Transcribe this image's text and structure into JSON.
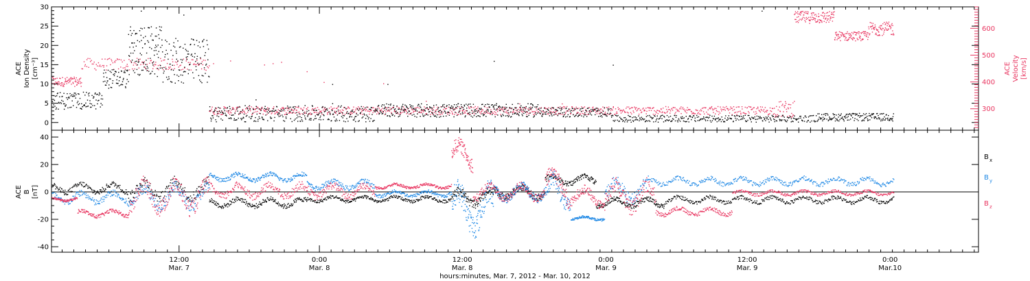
{
  "colors": {
    "black": "#000000",
    "pink": "#e8345f",
    "blue": "#1e88e5"
  },
  "chart_data": [
    {
      "type": "scatter",
      "panel": "top",
      "ylabel_lines": [
        "ACE",
        "Ion Density",
        "[cm⁻³]"
      ],
      "ylabel_right_lines": [
        "ACE",
        "Velocity",
        "[km/s]"
      ],
      "ylim": [
        -2,
        30
      ],
      "ylim_right": [
        220,
        680
      ],
      "yticks": [
        0,
        5,
        10,
        15,
        20,
        25,
        30
      ],
      "yticks_right": [
        300,
        400,
        500,
        600
      ],
      "series": [
        {
          "axis": "left",
          "color": "#000000",
          "segments": [
            {
              "t0": 0,
              "t1": 6,
              "n": 110,
              "min": 3.5,
              "max": 8
            },
            {
              "t0": 6,
              "t1": 9,
              "n": 60,
              "min": 9,
              "max": 14
            },
            {
              "t0": 9,
              "t1": 13,
              "n": 110,
              "min": 12,
              "max": 25
            },
            {
              "t0": 13,
              "t1": 18.5,
              "n": 120,
              "min": 10,
              "max": 22
            },
            {
              "t0": 18.5,
              "t1": 38,
              "n": 320,
              "min": 0.3,
              "max": 4.5
            },
            {
              "t0": 38,
              "t1": 58,
              "n": 360,
              "min": 1.5,
              "max": 5
            },
            {
              "t0": 58,
              "t1": 66,
              "n": 120,
              "min": 1.5,
              "max": 4
            },
            {
              "t0": 66,
              "t1": 90,
              "n": 320,
              "min": 0.2,
              "max": 2
            },
            {
              "t0": 90,
              "t1": 99,
              "n": 160,
              "min": 0.5,
              "max": 2.5
            }
          ],
          "outliers": [
            [
              10.5,
              29
            ],
            [
              15.5,
              28
            ],
            [
              24,
              6
            ],
            [
              33,
              5
            ],
            [
              52,
              16
            ],
            [
              66,
              15
            ],
            [
              83.5,
              29
            ],
            [
              33,
              10
            ],
            [
              39.5,
              10
            ]
          ]
        },
        {
          "axis": "right",
          "color": "#e8345f",
          "segments": [
            {
              "t0": 0,
              "t1": 3.5,
              "n": 80,
              "min": 385,
              "max": 420
            },
            {
              "t0": 3.5,
              "t1": 18.5,
              "n": 150,
              "min": 445,
              "max": 490
            },
            {
              "t0": 18.5,
              "t1": 85,
              "n": 900,
              "min": 280,
              "max": 310
            },
            {
              "t0": 85,
              "t1": 87.3,
              "n": 40,
              "min": 270,
              "max": 330
            },
            {
              "t0": 87.3,
              "t1": 92,
              "n": 120,
              "min": 620,
              "max": 665
            },
            {
              "t0": 92,
              "t1": 96,
              "n": 100,
              "min": 555,
              "max": 590
            },
            {
              "t0": 96,
              "t1": 99,
              "n": 80,
              "min": 575,
              "max": 625
            }
          ],
          "outliers": [
            [
              19,
              470
            ],
            [
              21,
              480
            ],
            [
              25,
              465
            ],
            [
              26,
              470
            ],
            [
              27,
              475
            ],
            [
              30,
              440
            ],
            [
              32,
              400
            ],
            [
              39,
              395
            ],
            [
              44,
              330
            ],
            [
              55,
              320
            ],
            [
              60,
              320
            ]
          ]
        }
      ]
    },
    {
      "type": "scatter",
      "panel": "bottom",
      "ylabel_lines": [
        "ACE",
        "B",
        "[nT]"
      ],
      "ylim": [
        -44,
        45
      ],
      "yticks": [
        -40,
        -20,
        0,
        20,
        40
      ],
      "series": [
        {
          "name": "Bx",
          "color": "#000000",
          "segments": [
            {
              "t0": 0,
              "t1": 9,
              "n": 140,
              "min": -2,
              "max": 8
            },
            {
              "t0": 9,
              "t1": 18.5,
              "n": 140,
              "min": -8,
              "max": 12
            },
            {
              "t0": 18.5,
              "t1": 30,
              "n": 200,
              "min": -12,
              "max": -3
            },
            {
              "t0": 30,
              "t1": 47,
              "n": 280,
              "min": -8,
              "max": -2
            },
            {
              "t0": 47,
              "t1": 52,
              "n": 120,
              "min": -12,
              "max": 4
            },
            {
              "t0": 52,
              "t1": 58,
              "n": 140,
              "min": -6,
              "max": 6
            },
            {
              "t0": 58,
              "t1": 64,
              "n": 120,
              "min": 4,
              "max": 14
            },
            {
              "t0": 64,
              "t1": 72,
              "n": 160,
              "min": -12,
              "max": -3
            },
            {
              "t0": 72,
              "t1": 99,
              "n": 380,
              "min": -9,
              "max": -2
            }
          ]
        },
        {
          "name": "By",
          "color": "#1e88e5",
          "segments": [
            {
              "t0": 0,
              "t1": 9,
              "n": 140,
              "min": -10,
              "max": 2
            },
            {
              "t0": 9,
              "t1": 18.5,
              "n": 160,
              "min": -14,
              "max": 8
            },
            {
              "t0": 18.5,
              "t1": 30,
              "n": 220,
              "min": 7,
              "max": 15
            },
            {
              "t0": 30,
              "t1": 38,
              "n": 140,
              "min": 1,
              "max": 10
            },
            {
              "t0": 38,
              "t1": 47,
              "n": 160,
              "min": -4,
              "max": 2
            },
            {
              "t0": 47,
              "t1": 52,
              "n": 140,
              "min": -34,
              "max": 10
            },
            {
              "t0": 52,
              "t1": 58.5,
              "n": 160,
              "min": -8,
              "max": 8
            },
            {
              "t0": 58.5,
              "t1": 61,
              "n": 60,
              "min": -18,
              "max": 18
            },
            {
              "t0": 61,
              "t1": 65,
              "n": 100,
              "min": -21,
              "max": -17
            },
            {
              "t0": 65,
              "t1": 70,
              "n": 90,
              "min": -10,
              "max": 12
            },
            {
              "t0": 70,
              "t1": 99,
              "n": 420,
              "min": 4,
              "max": 12
            }
          ]
        },
        {
          "name": "Bz",
          "color": "#e8345f",
          "segments": [
            {
              "t0": 0,
              "t1": 3,
              "n": 70,
              "min": -7,
              "max": -3
            },
            {
              "t0": 3,
              "t1": 9,
              "n": 120,
              "min": -19,
              "max": -12
            },
            {
              "t0": 9,
              "t1": 18.5,
              "n": 180,
              "min": -18,
              "max": 12
            },
            {
              "t0": 18.5,
              "t1": 38,
              "n": 320,
              "min": -6,
              "max": 8
            },
            {
              "t0": 38,
              "t1": 47,
              "n": 180,
              "min": 2,
              "max": 7
            },
            {
              "t0": 47,
              "t1": 49.5,
              "n": 80,
              "min": 14,
              "max": 40
            },
            {
              "t0": 49.5,
              "t1": 58,
              "n": 160,
              "min": -8,
              "max": 8
            },
            {
              "t0": 58,
              "t1": 60.5,
              "n": 60,
              "min": -8,
              "max": 20
            },
            {
              "t0": 60.5,
              "t1": 65,
              "n": 100,
              "min": -12,
              "max": 6
            },
            {
              "t0": 65,
              "t1": 71,
              "n": 120,
              "min": -18,
              "max": 12
            },
            {
              "t0": 71,
              "t1": 80,
              "n": 160,
              "min": -18,
              "max": -10
            },
            {
              "t0": 80,
              "t1": 99,
              "n": 300,
              "min": -3,
              "max": 2
            }
          ]
        }
      ]
    }
  ],
  "axis": {
    "x_ticks": [
      {
        "t": 15,
        "line1": "12:00",
        "line2": "Mar. 7"
      },
      {
        "t": 31.5,
        "line1": "0:00",
        "line2": "Mar. 8"
      },
      {
        "t": 48.3,
        "line1": "12:00",
        "line2": "Mar. 8"
      },
      {
        "t": 65.2,
        "line1": "0:00",
        "line2": "Mar. 9"
      },
      {
        "t": 81.8,
        "line1": "12:00",
        "line2": "Mar. 9"
      },
      {
        "t": 98.6,
        "line1": "0:00",
        "line2": "Mar.10"
      }
    ],
    "x_range": [
      0,
      109
    ],
    "xlabel": "hours:minutes, Mar.  7, 2012 - Mar. 10, 2012"
  },
  "legend": [
    {
      "label": "B",
      "sub": "x",
      "color": "#000000"
    },
    {
      "label": "B",
      "sub": "y",
      "color": "#1e88e5"
    },
    {
      "label": "B",
      "sub": "z",
      "color": "#e8345f"
    }
  ]
}
